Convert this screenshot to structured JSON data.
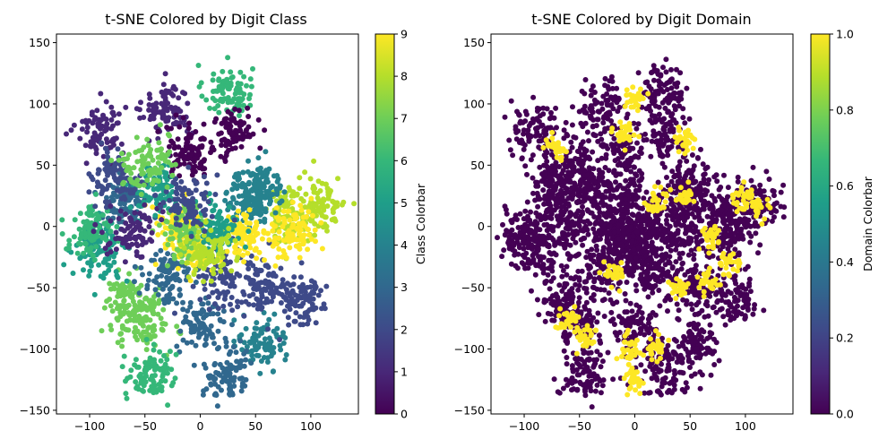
{
  "chart_data": [
    {
      "type": "scatter",
      "title": "t-SNE Colored by Digit Class",
      "xlabel": "",
      "ylabel": "",
      "xlim": [
        -130,
        143
      ],
      "ylim": [
        -153,
        157
      ],
      "xticks": [
        -100,
        -50,
        0,
        50,
        100
      ],
      "yticks": [
        -150,
        -100,
        -50,
        0,
        50,
        100,
        150
      ],
      "xtick_labels": [
        "−100",
        "−50",
        "0",
        "50",
        "100"
      ],
      "ytick_labels": [
        "−150",
        "−100",
        "−50",
        "0",
        "50",
        "100",
        "150"
      ],
      "color_by": "class",
      "colorbar": {
        "label": "Class Colorbar",
        "range": [
          0,
          9
        ],
        "ticks": [
          0,
          1,
          2,
          3,
          4,
          5,
          6,
          7,
          8,
          9
        ],
        "tick_labels": [
          "0",
          "1",
          "2",
          "3",
          "4",
          "5",
          "6",
          "7",
          "8",
          "9"
        ],
        "colormap": "viridis"
      },
      "grid": false,
      "clusters": [
        {
          "x": 25,
          "y": 110,
          "value": 6
        },
        {
          "x": -90,
          "y": 80,
          "value": 1
        },
        {
          "x": -30,
          "y": 95,
          "value": 1
        },
        {
          "x": 30,
          "y": 75,
          "value": 0
        },
        {
          "x": -10,
          "y": 60,
          "value": 0
        },
        {
          "x": 110,
          "y": 20,
          "value": 8
        },
        {
          "x": 80,
          "y": 10,
          "value": 8
        },
        {
          "x": 85,
          "y": -5,
          "value": 9
        },
        {
          "x": 45,
          "y": 25,
          "value": 4
        },
        {
          "x": 55,
          "y": 30,
          "value": 4
        },
        {
          "x": -50,
          "y": -80,
          "value": 7
        },
        {
          "x": -65,
          "y": -60,
          "value": 7
        },
        {
          "x": 55,
          "y": -95,
          "value": 4
        },
        {
          "x": 25,
          "y": -120,
          "value": 3
        },
        {
          "x": 0,
          "y": -80,
          "value": 3
        },
        {
          "x": 55,
          "y": -50,
          "value": 2
        },
        {
          "x": 20,
          "y": -40,
          "value": 2
        },
        {
          "x": -30,
          "y": -40,
          "value": 3
        },
        {
          "x": -20,
          "y": 0,
          "value": 9
        },
        {
          "x": -5,
          "y": -20,
          "value": 9
        },
        {
          "x": 40,
          "y": -10,
          "value": 9
        },
        {
          "x": -70,
          "y": 20,
          "value": 3
        },
        {
          "x": -40,
          "y": 30,
          "value": 5
        },
        {
          "x": -90,
          "y": -20,
          "value": 5
        },
        {
          "x": -100,
          "y": -5,
          "value": 6
        },
        {
          "x": -75,
          "y": 40,
          "value": 2
        },
        {
          "x": -15,
          "y": -5,
          "value": 7
        },
        {
          "x": 15,
          "y": 0,
          "value": 5
        },
        {
          "x": -60,
          "y": -5,
          "value": 1
        },
        {
          "x": 5,
          "y": -20,
          "value": 8
        },
        {
          "x": 90,
          "y": -60,
          "value": 2
        },
        {
          "x": -10,
          "y": 20,
          "value": 2
        },
        {
          "x": -45,
          "y": -120,
          "value": 6
        },
        {
          "x": -50,
          "y": 50,
          "value": 7
        }
      ]
    },
    {
      "type": "scatter",
      "title": "t-SNE Colored by Digit Domain",
      "xlabel": "",
      "ylabel": "",
      "xlim": [
        -130,
        143
      ],
      "ylim": [
        -153,
        157
      ],
      "xticks": [
        -100,
        -50,
        0,
        50,
        100
      ],
      "yticks": [
        -150,
        -100,
        -50,
        0,
        50,
        100,
        150
      ],
      "xtick_labels": [
        "−100",
        "−50",
        "0",
        "50",
        "100"
      ],
      "ytick_labels": [
        "−150",
        "−100",
        "−50",
        "0",
        "50",
        "100",
        "150"
      ],
      "color_by": "domain",
      "colorbar": {
        "label": "Domain Colorbar",
        "range": [
          0,
          1
        ],
        "ticks": [
          0,
          0.2,
          0.4,
          0.6,
          0.8,
          1.0
        ],
        "tick_labels": [
          "0.0",
          "0.2",
          "0.4",
          "0.6",
          "0.8",
          "1.0"
        ],
        "colormap": "viridis"
      },
      "grid": false,
      "clusters": [
        {
          "x": 25,
          "y": 110,
          "value": 0
        },
        {
          "x": -90,
          "y": 80,
          "value": 0
        },
        {
          "x": -30,
          "y": 95,
          "value": 0
        },
        {
          "x": 30,
          "y": 75,
          "value": 0
        },
        {
          "x": -10,
          "y": 60,
          "value": 0
        },
        {
          "x": 110,
          "y": 20,
          "value": 0
        },
        {
          "x": 80,
          "y": 10,
          "value": 0
        },
        {
          "x": 85,
          "y": -5,
          "value": 0
        },
        {
          "x": 45,
          "y": 25,
          "value": 0
        },
        {
          "x": 55,
          "y": 30,
          "value": 0
        },
        {
          "x": -50,
          "y": -80,
          "value": 0
        },
        {
          "x": -65,
          "y": -60,
          "value": 0
        },
        {
          "x": 55,
          "y": -95,
          "value": 0
        },
        {
          "x": 25,
          "y": -120,
          "value": 0
        },
        {
          "x": 0,
          "y": -80,
          "value": 0
        },
        {
          "x": 55,
          "y": -50,
          "value": 0
        },
        {
          "x": 20,
          "y": -40,
          "value": 0
        },
        {
          "x": -30,
          "y": -40,
          "value": 0
        },
        {
          "x": -20,
          "y": 0,
          "value": 0
        },
        {
          "x": -5,
          "y": -20,
          "value": 0
        },
        {
          "x": 40,
          "y": -10,
          "value": 0
        },
        {
          "x": -70,
          "y": 20,
          "value": 0
        },
        {
          "x": -40,
          "y": 30,
          "value": 0
        },
        {
          "x": -90,
          "y": -20,
          "value": 0
        },
        {
          "x": -100,
          "y": -5,
          "value": 0
        },
        {
          "x": -75,
          "y": 40,
          "value": 0
        },
        {
          "x": -15,
          "y": -5,
          "value": 0
        },
        {
          "x": 15,
          "y": 0,
          "value": 0
        },
        {
          "x": -60,
          "y": -5,
          "value": 0
        },
        {
          "x": 5,
          "y": -20,
          "value": 0
        },
        {
          "x": 90,
          "y": -60,
          "value": 0
        },
        {
          "x": -10,
          "y": 20,
          "value": 0
        },
        {
          "x": -45,
          "y": -120,
          "value": 0
        },
        {
          "x": -50,
          "y": 50,
          "value": 0
        },
        {
          "x": 0,
          "y": 105,
          "value": 1
        },
        {
          "x": -10,
          "y": 75,
          "value": 1
        },
        {
          "x": -70,
          "y": 65,
          "value": 1
        },
        {
          "x": 45,
          "y": 70,
          "value": 1
        },
        {
          "x": 20,
          "y": 20,
          "value": 1
        },
        {
          "x": 45,
          "y": 25,
          "value": 1
        },
        {
          "x": 95,
          "y": 20,
          "value": 1
        },
        {
          "x": 110,
          "y": 15,
          "value": 1
        },
        {
          "x": 40,
          "y": -50,
          "value": 1
        },
        {
          "x": 65,
          "y": -45,
          "value": 1
        },
        {
          "x": -5,
          "y": -100,
          "value": 1
        },
        {
          "x": -45,
          "y": -90,
          "value": 1
        },
        {
          "x": 20,
          "y": -100,
          "value": 1
        },
        {
          "x": 0,
          "y": -125,
          "value": 1
        },
        {
          "x": 70,
          "y": -10,
          "value": 1
        },
        {
          "x": -20,
          "y": -40,
          "value": 1
        },
        {
          "x": -60,
          "y": -75,
          "value": 1
        },
        {
          "x": 85,
          "y": -30,
          "value": 1
        }
      ]
    }
  ]
}
